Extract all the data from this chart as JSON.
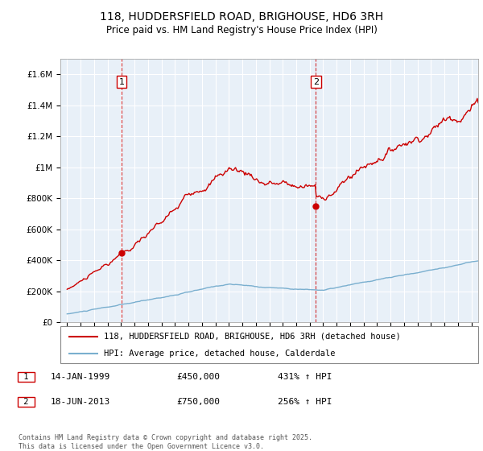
{
  "title": "118, HUDDERSFIELD ROAD, BRIGHOUSE, HD6 3RH",
  "subtitle": "Price paid vs. HM Land Registry's House Price Index (HPI)",
  "legend_line1": "118, HUDDERSFIELD ROAD, BRIGHOUSE, HD6 3RH (detached house)",
  "legend_line2": "HPI: Average price, detached house, Calderdale",
  "sale1_label": "1",
  "sale1_date": "14-JAN-1999",
  "sale1_price": "£450,000",
  "sale1_hpi": "431% ↑ HPI",
  "sale1_year": 1999.04,
  "sale1_value": 450000,
  "sale2_label": "2",
  "sale2_date": "18-JUN-2013",
  "sale2_price": "£750,000",
  "sale2_hpi": "256% ↑ HPI",
  "sale2_year": 2013.46,
  "sale2_value": 750000,
  "red_line_color": "#cc0000",
  "blue_line_color": "#7aafcf",
  "vline_color": "#cc0000",
  "background_color": "#ffffff",
  "chart_bg_color": "#e8f0f8",
  "grid_color": "#ffffff",
  "ylim": [
    0,
    1700000
  ],
  "xlim": [
    1994.5,
    2025.5
  ],
  "footer": "Contains HM Land Registry data © Crown copyright and database right 2025.\nThis data is licensed under the Open Government Licence v3.0."
}
